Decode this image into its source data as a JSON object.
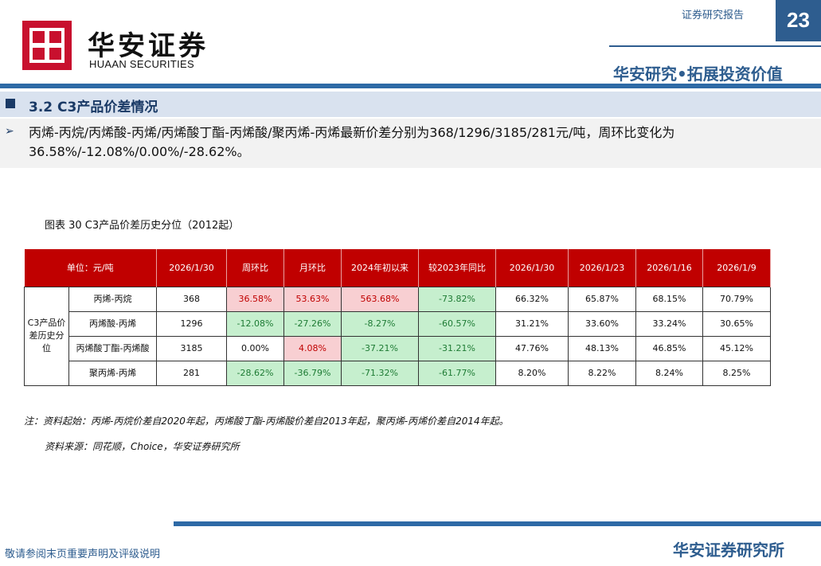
{
  "header": {
    "logo_cn": "华安证券",
    "logo_en": "HUAAN SECURITIES",
    "report_label": "证券研究报告",
    "page_number": "23",
    "slogan": "华安研究•拓展投资价值"
  },
  "section": {
    "title": "3.2 C3产品价差情况",
    "summary": "丙烯-丙烷/丙烯酸-丙烯/丙烯酸丁酯-丙烯酸/聚丙烯-丙烯最新价差分别为368/1296/3185/281元/吨，周环比变化为36.58%/-12.08%/0.00%/-28.62%。"
  },
  "figure": {
    "title": "图表 30 C3产品价差历史分位（2012起）",
    "table": {
      "headers": [
        "单位：元/吨",
        "2026/1/30",
        "周环比",
        "月环比",
        "2024年初以来",
        "较2023年同比",
        "2026/1/30",
        "2026/1/23",
        "2026/1/16",
        "2026/1/9"
      ],
      "group_label": "C3产品价差历史分位",
      "rows": [
        {
          "name": "丙烯-丙烷",
          "value": "368",
          "wow": "36.58%",
          "mom": "53.63%",
          "ytd": "563.68%",
          "yoy": "-73.82%",
          "p1": "66.32%",
          "p2": "65.87%",
          "p3": "68.15%",
          "p4": "70.79%"
        },
        {
          "name": "丙烯酸-丙烯",
          "value": "1296",
          "wow": "-12.08%",
          "mom": "-27.26%",
          "ytd": "-8.27%",
          "yoy": "-60.57%",
          "p1": "31.21%",
          "p2": "33.60%",
          "p3": "33.24%",
          "p4": "30.65%"
        },
        {
          "name": "丙烯酸丁酯-丙烯酸",
          "value": "3185",
          "wow": "0.00%",
          "mom": "4.08%",
          "ytd": "-37.21%",
          "yoy": "-31.21%",
          "p1": "47.76%",
          "p2": "48.13%",
          "p3": "46.85%",
          "p4": "45.12%"
        },
        {
          "name": "聚丙烯-丙烯",
          "value": "281",
          "wow": "-28.62%",
          "mom": "-36.79%",
          "ytd": "-71.32%",
          "yoy": "-61.77%",
          "p1": "8.20%",
          "p2": "8.22%",
          "p3": "8.24%",
          "p4": "8.25%"
        }
      ]
    },
    "note": "注：资料起始：丙烯-丙烷价差自2020年起，丙烯酸丁酯-丙烯酸价差自2013年起，聚丙烯-丙烯价差自2014年起。",
    "source": "资料来源：同花顺，Choice，华安证券研究所"
  },
  "footer": {
    "disclaimer": "敬请参阅末页重要声明及评级说明",
    "brand": "华安证券研究所"
  },
  "colors": {
    "brand_blue": "#2e5d8f",
    "header_red": "#c00000",
    "positive_bg": "#f8cfd2",
    "negative_bg": "#c6efce"
  }
}
